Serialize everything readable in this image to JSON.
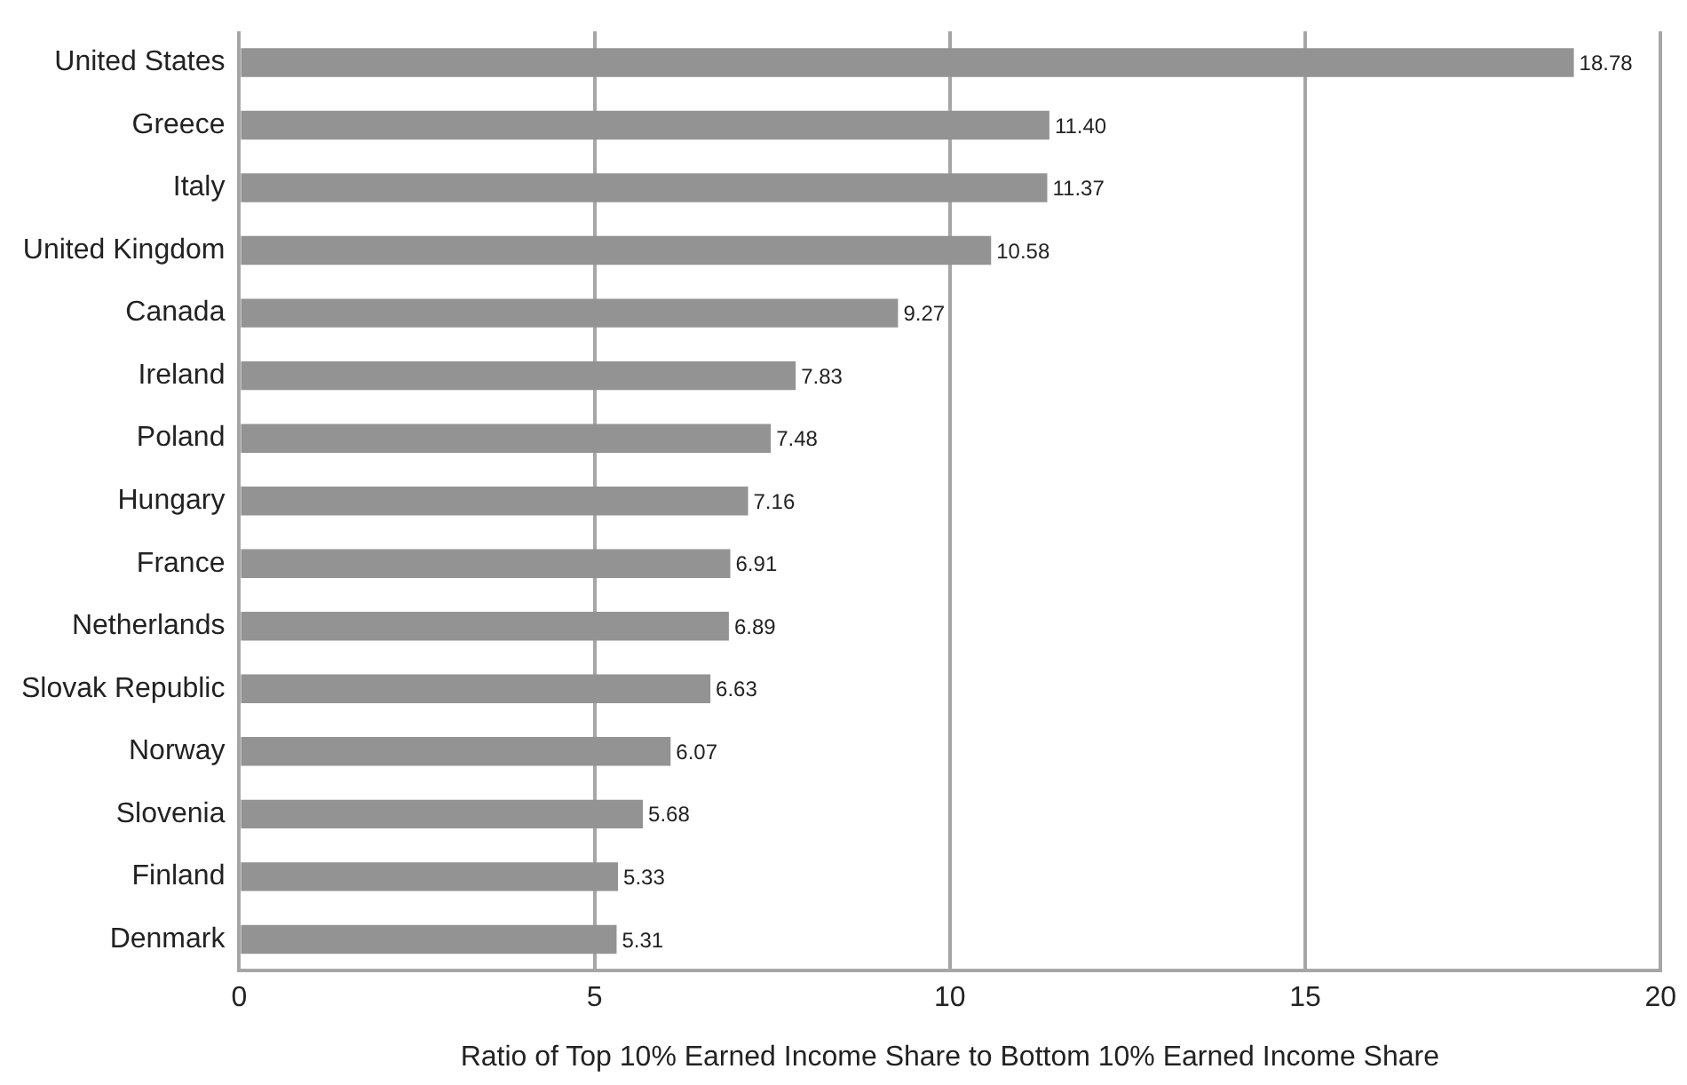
{
  "chart_data": {
    "type": "bar",
    "orientation": "horizontal",
    "xlabel": "Ratio of Top 10% Earned Income Share to Bottom 10% Earned Income Share",
    "categories": [
      "United States",
      "Greece",
      "Italy",
      "United Kingdom",
      "Canada",
      "Ireland",
      "Poland",
      "Hungary",
      "France",
      "Netherlands",
      "Slovak Republic",
      "Norway",
      "Slovenia",
      "Finland",
      "Denmark"
    ],
    "values": [
      18.78,
      11.4,
      11.37,
      10.58,
      9.27,
      7.83,
      7.48,
      7.16,
      6.91,
      6.89,
      6.63,
      6.07,
      5.68,
      5.33,
      5.31
    ],
    "value_labels": [
      "18.78",
      "11.40",
      "11.37",
      "10.58",
      "9.27",
      "7.83",
      "7.48",
      "7.16",
      "6.91",
      "6.89",
      "6.63",
      "6.07",
      "5.68",
      "5.33",
      "5.31"
    ],
    "color": "#939393",
    "xlim": [
      0,
      20
    ],
    "xticks": [
      0,
      5,
      10,
      15,
      20
    ],
    "grid": "x",
    "legend": false
  }
}
